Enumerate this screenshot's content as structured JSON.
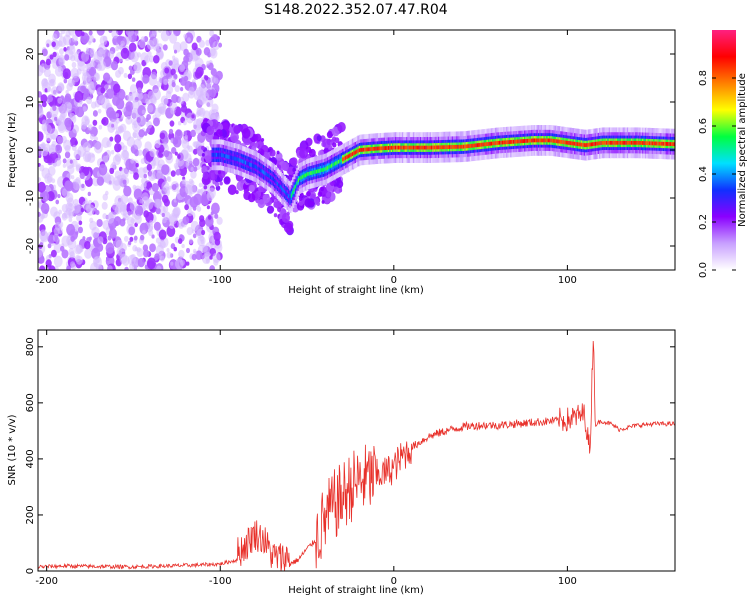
{
  "title": "S148.2022.352.07.47.R04",
  "chart_data": [
    {
      "type": "heatmap",
      "xlabel": "Height of straight line (km)",
      "ylabel": "Frequency (Hz)",
      "xlim": [
        -205,
        162
      ],
      "ylim": [
        -25,
        25
      ],
      "xticks": [
        -200,
        -100,
        0,
        100
      ],
      "yticks": [
        -20,
        -10,
        0,
        10,
        20
      ],
      "colorbar": {
        "label": "Normalized spectral amplitude",
        "range": [
          0.0,
          1.0
        ],
        "ticks": [
          "0.0",
          "0.2",
          "0.4",
          "0.6",
          "0.8"
        ],
        "tick_values": [
          0.0,
          0.2,
          0.4,
          0.6,
          0.8
        ],
        "colormap": [
          "#ffffff",
          "#c8a0ff",
          "#8a00ff",
          "#1030ff",
          "#00e0ff",
          "#00ff40",
          "#ffff00",
          "#ff8000",
          "#ff0000",
          "#ff2080"
        ]
      },
      "ridge": {
        "x": [
          -100,
          -90,
          -80,
          -70,
          -60,
          -55,
          -50,
          -40,
          -30,
          -20,
          -10,
          0,
          20,
          40,
          60,
          80,
          90,
          100,
          110,
          120,
          140,
          162
        ],
        "y": [
          -1,
          -2,
          -3.5,
          -6,
          -10,
          -6,
          -5,
          -4,
          -2,
          0,
          0.3,
          0.5,
          0.5,
          0.7,
          1.5,
          2,
          2,
          1.5,
          1,
          1.5,
          1.5,
          1.2
        ]
      }
    },
    {
      "type": "line",
      "xlabel": "Height of straight line (km)",
      "ylabel": "SNR (10 * v/v)",
      "xlim": [
        -205,
        162
      ],
      "ylim": [
        0,
        860
      ],
      "xticks": [
        -200,
        -100,
        0,
        100
      ],
      "yticks": [
        0,
        200,
        400,
        600,
        800
      ],
      "color": "#e8302a",
      "series": [
        {
          "x": [
            -205,
            -190,
            -170,
            -150,
            -130,
            -110,
            -100,
            -90,
            -85,
            -80,
            -75,
            -70,
            -65,
            -60,
            -55,
            -50,
            -45,
            -40,
            -35,
            -30,
            -25,
            -20,
            -15,
            -10,
            -5,
            0,
            5,
            10,
            15,
            20,
            30,
            40,
            50,
            60,
            70,
            80,
            90,
            100,
            105,
            110,
            113,
            115,
            116,
            118,
            120,
            125,
            130,
            140,
            150,
            162
          ],
          "y": [
            15,
            18,
            16,
            15,
            18,
            22,
            25,
            40,
            70,
            110,
            90,
            30,
            22,
            25,
            40,
            80,
            110,
            180,
            230,
            260,
            300,
            320,
            330,
            340,
            350,
            370,
            410,
            440,
            460,
            480,
            500,
            515,
            520,
            520,
            525,
            530,
            535,
            540,
            550,
            560,
            420,
            860,
            520,
            530,
            535,
            525,
            505,
            520,
            525,
            525
          ]
        }
      ]
    }
  ]
}
